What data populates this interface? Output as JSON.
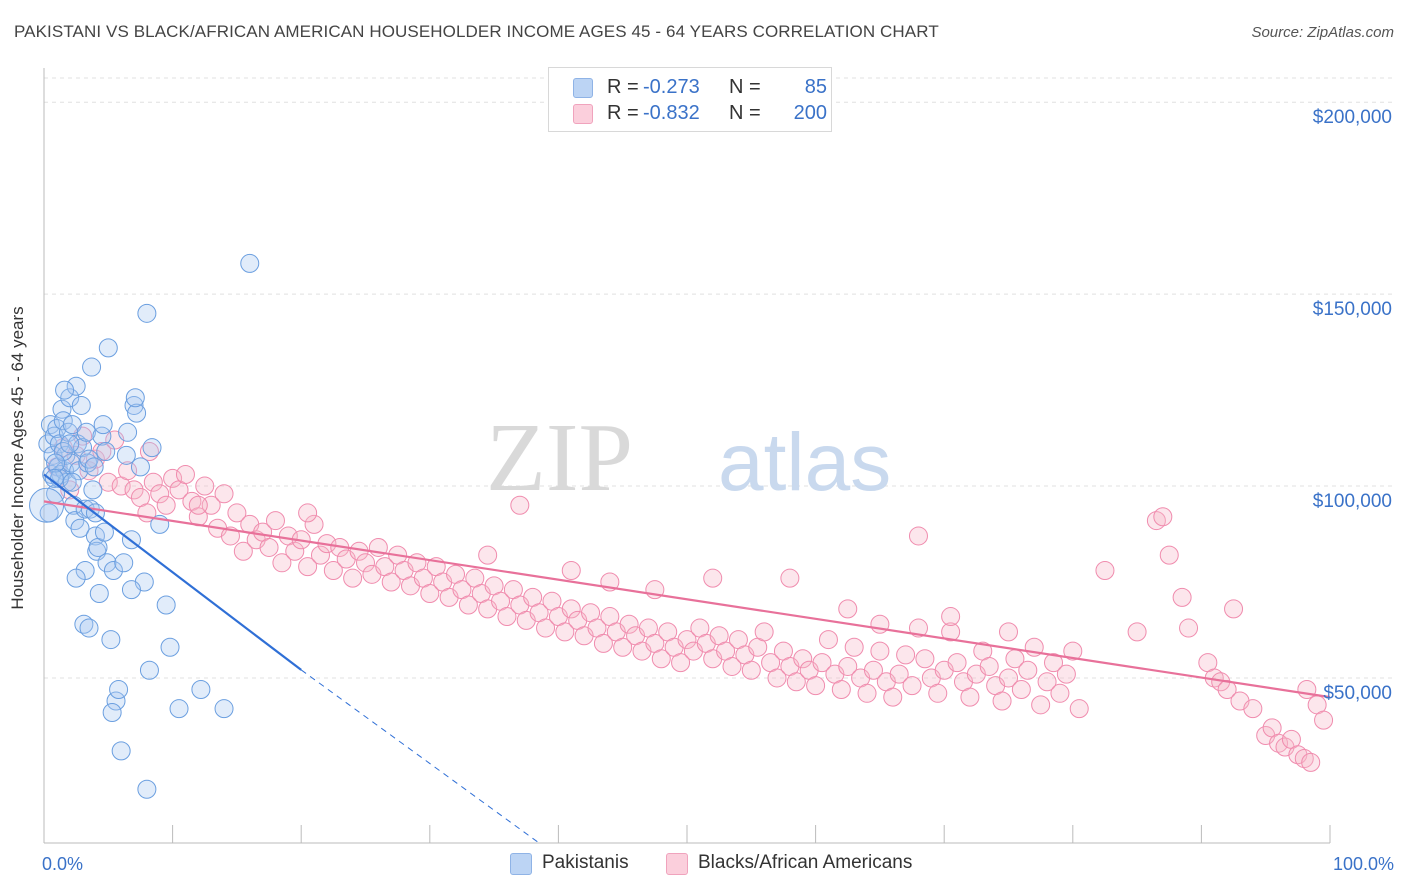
{
  "title": "PAKISTANI VS BLACK/AFRICAN AMERICAN HOUSEHOLDER INCOME AGES 45 - 64 YEARS CORRELATION CHART",
  "source": "Source: ZipAtlas.com",
  "watermark": {
    "zip": "ZIP",
    "atlas": "atlas"
  },
  "legend_top": {
    "rows": [
      {
        "r_label": "R =",
        "r_value": "-0.273",
        "n_label": "N =",
        "n_value": "85",
        "color": "#a9c8f0"
      },
      {
        "r_label": "R =",
        "r_value": "-0.832",
        "n_label": "N =",
        "n_value": "200",
        "color": "#f7b6c9"
      }
    ]
  },
  "legend_bottom": [
    {
      "label": "Pakistanis",
      "color": "#a9c8f0"
    },
    {
      "label": "Blacks/African Americans",
      "color": "#f7b6c9"
    }
  ],
  "colors": {
    "blue": "#6b9fe0",
    "blue_line": "#2f6fd6",
    "pink": "#f08cae",
    "pink_line": "#e8719a",
    "axis_text": "#3a72c8",
    "grid": "#dddddd"
  },
  "chart_data": {
    "type": "scatter",
    "title": "PAKISTANI VS BLACK/AFRICAN AMERICAN HOUSEHOLDER INCOME AGES 45 - 64 YEARS CORRELATION CHART",
    "ylabel": "Householder Income Ages 45 - 64 years",
    "xlabel": "",
    "xlim": [
      0,
      100
    ],
    "ylim": [
      7000,
      211000
    ],
    "x_tick_labels": [
      "0.0%",
      "100.0%"
    ],
    "y_ticks": [
      50000,
      100000,
      150000,
      200000
    ],
    "y_tick_labels": [
      "$50,000",
      "$100,000",
      "$150,000",
      "$200,000"
    ],
    "grid": "horizontal dashed",
    "series": [
      {
        "name": "Pakistanis",
        "color": "#6b9fe0",
        "trend": {
          "x0": 0,
          "y0": 103000,
          "x_solid_end": 20,
          "x_dash_end": 38.5,
          "y_dash_end": 5000
        },
        "points": [
          [
            0.3,
            111000
          ],
          [
            0.5,
            116000
          ],
          [
            0.6,
            103000
          ],
          [
            0.7,
            108000
          ],
          [
            0.8,
            113000
          ],
          [
            0.9,
            98000
          ],
          [
            1.0,
            115000
          ],
          [
            1.1,
            105000
          ],
          [
            1.2,
            111000
          ],
          [
            1.3,
            103000
          ],
          [
            1.4,
            120000
          ],
          [
            1.5,
            117000
          ],
          [
            1.6,
            104000
          ],
          [
            1.7,
            108000
          ],
          [
            1.8,
            101000
          ],
          [
            1.9,
            114000
          ],
          [
            2.0,
            123000
          ],
          [
            2.1,
            106000
          ],
          [
            2.2,
            116000
          ],
          [
            2.3,
            95000
          ],
          [
            2.4,
            91000
          ],
          [
            2.5,
            126000
          ],
          [
            2.6,
            111000
          ],
          [
            2.7,
            104000
          ],
          [
            2.8,
            89000
          ],
          [
            2.9,
            121000
          ],
          [
            3.0,
            110000
          ],
          [
            3.1,
            64000
          ],
          [
            3.2,
            94000
          ],
          [
            3.3,
            114000
          ],
          [
            3.4,
            106000
          ],
          [
            3.5,
            107000
          ],
          [
            3.6,
            94000
          ],
          [
            3.7,
            131000
          ],
          [
            3.8,
            99000
          ],
          [
            3.9,
            105000
          ],
          [
            4.0,
            87000
          ],
          [
            4.1,
            83000
          ],
          [
            4.2,
            84000
          ],
          [
            4.3,
            72000
          ],
          [
            4.5,
            113000
          ],
          [
            4.6,
            116000
          ],
          [
            4.7,
            88000
          ],
          [
            4.8,
            109000
          ],
          [
            4.9,
            80000
          ],
          [
            5.0,
            136000
          ],
          [
            5.2,
            60000
          ],
          [
            5.4,
            78000
          ],
          [
            5.6,
            44000
          ],
          [
            5.8,
            47000
          ],
          [
            6.0,
            31000
          ],
          [
            6.2,
            80000
          ],
          [
            6.5,
            114000
          ],
          [
            6.8,
            86000
          ],
          [
            7.0,
            121000
          ],
          [
            7.2,
            119000
          ],
          [
            7.5,
            105000
          ],
          [
            7.8,
            75000
          ],
          [
            8.0,
            21000
          ],
          [
            8.2,
            52000
          ],
          [
            6.4,
            108000
          ],
          [
            9.5,
            69000
          ],
          [
            8.4,
            110000
          ],
          [
            5.3,
            41000
          ],
          [
            7.1,
            123000
          ],
          [
            9.8,
            58000
          ],
          [
            10.5,
            42000
          ],
          [
            12.2,
            47000
          ],
          [
            14.0,
            42000
          ],
          [
            16.0,
            158000
          ],
          [
            8.0,
            145000
          ],
          [
            9.0,
            90000
          ],
          [
            3.2,
            78000
          ],
          [
            2.5,
            76000
          ],
          [
            1.5,
            109000
          ],
          [
            1.2,
            102000
          ],
          [
            0.9,
            106000
          ],
          [
            0.4,
            93000
          ],
          [
            0.8,
            102000
          ],
          [
            2.0,
            111000
          ],
          [
            4.0,
            93000
          ],
          [
            3.5,
            63000
          ],
          [
            6.8,
            73000
          ],
          [
            1.6,
            125000
          ],
          [
            2.2,
            101000
          ]
        ]
      },
      {
        "name": "Blacks/African Americans",
        "color": "#f08cae",
        "trend": {
          "x0": 0,
          "y0": 96000,
          "x1": 100,
          "y1": 45000
        },
        "points": [
          [
            1.0,
            105000
          ],
          [
            1.5,
            110000
          ],
          [
            2.0,
            99000
          ],
          [
            2.5,
            108000
          ],
          [
            3.0,
            113000
          ],
          [
            3.5,
            104000
          ],
          [
            4.0,
            107000
          ],
          [
            4.5,
            109000
          ],
          [
            5.0,
            101000
          ],
          [
            5.5,
            112000
          ],
          [
            6.0,
            100000
          ],
          [
            6.5,
            104000
          ],
          [
            7.0,
            99000
          ],
          [
            7.5,
            97000
          ],
          [
            8.0,
            93000
          ],
          [
            8.5,
            101000
          ],
          [
            9.0,
            98000
          ],
          [
            9.5,
            95000
          ],
          [
            10.0,
            102000
          ],
          [
            10.5,
            99000
          ],
          [
            11.0,
            103000
          ],
          [
            11.5,
            96000
          ],
          [
            12.0,
            92000
          ],
          [
            12.5,
            100000
          ],
          [
            13.0,
            95000
          ],
          [
            13.5,
            89000
          ],
          [
            14.0,
            98000
          ],
          [
            14.5,
            87000
          ],
          [
            15.0,
            93000
          ],
          [
            15.5,
            83000
          ],
          [
            16.0,
            90000
          ],
          [
            16.5,
            86000
          ],
          [
            17.0,
            88000
          ],
          [
            17.5,
            84000
          ],
          [
            18.0,
            91000
          ],
          [
            18.5,
            80000
          ],
          [
            19.0,
            87000
          ],
          [
            19.5,
            83000
          ],
          [
            20.0,
            86000
          ],
          [
            20.5,
            79000
          ],
          [
            21.0,
            90000
          ],
          [
            21.5,
            82000
          ],
          [
            22.0,
            85000
          ],
          [
            22.5,
            78000
          ],
          [
            23.0,
            84000
          ],
          [
            23.5,
            81000
          ],
          [
            24.0,
            76000
          ],
          [
            24.5,
            83000
          ],
          [
            25.0,
            80000
          ],
          [
            25.5,
            77000
          ],
          [
            26.0,
            84000
          ],
          [
            26.5,
            79000
          ],
          [
            27.0,
            75000
          ],
          [
            27.5,
            82000
          ],
          [
            28.0,
            78000
          ],
          [
            28.5,
            74000
          ],
          [
            29.0,
            80000
          ],
          [
            29.5,
            76000
          ],
          [
            30.0,
            72000
          ],
          [
            30.5,
            79000
          ],
          [
            31.0,
            75000
          ],
          [
            31.5,
            71000
          ],
          [
            32.0,
            77000
          ],
          [
            32.5,
            73000
          ],
          [
            33.0,
            69000
          ],
          [
            33.5,
            76000
          ],
          [
            34.0,
            72000
          ],
          [
            34.5,
            68000
          ],
          [
            35.0,
            74000
          ],
          [
            35.5,
            70000
          ],
          [
            36.0,
            66000
          ],
          [
            36.5,
            73000
          ],
          [
            37.0,
            69000
          ],
          [
            37.5,
            65000
          ],
          [
            38.0,
            71000
          ],
          [
            38.5,
            67000
          ],
          [
            39.0,
            63000
          ],
          [
            39.5,
            70000
          ],
          [
            40.0,
            66000
          ],
          [
            40.5,
            62000
          ],
          [
            41.0,
            68000
          ],
          [
            41.5,
            65000
          ],
          [
            42.0,
            61000
          ],
          [
            42.5,
            67000
          ],
          [
            43.0,
            63000
          ],
          [
            43.5,
            59000
          ],
          [
            44.0,
            66000
          ],
          [
            44.5,
            62000
          ],
          [
            45.0,
            58000
          ],
          [
            45.5,
            64000
          ],
          [
            46.0,
            61000
          ],
          [
            46.5,
            57000
          ],
          [
            47.0,
            63000
          ],
          [
            47.5,
            59000
          ],
          [
            48.0,
            55000
          ],
          [
            48.5,
            62000
          ],
          [
            49.0,
            58000
          ],
          [
            49.5,
            54000
          ],
          [
            50.0,
            60000
          ],
          [
            50.5,
            57000
          ],
          [
            51.0,
            63000
          ],
          [
            51.5,
            59000
          ],
          [
            52.0,
            55000
          ],
          [
            52.5,
            61000
          ],
          [
            53.0,
            57000
          ],
          [
            53.5,
            53000
          ],
          [
            54.0,
            60000
          ],
          [
            54.5,
            56000
          ],
          [
            55.0,
            52000
          ],
          [
            55.5,
            58000
          ],
          [
            56.0,
            62000
          ],
          [
            56.5,
            54000
          ],
          [
            57.0,
            50000
          ],
          [
            57.5,
            57000
          ],
          [
            58.0,
            53000
          ],
          [
            58.5,
            49000
          ],
          [
            59.0,
            55000
          ],
          [
            59.5,
            52000
          ],
          [
            60.0,
            48000
          ],
          [
            60.5,
            54000
          ],
          [
            61.0,
            60000
          ],
          [
            61.5,
            51000
          ],
          [
            62.0,
            47000
          ],
          [
            62.5,
            53000
          ],
          [
            63.0,
            58000
          ],
          [
            63.5,
            50000
          ],
          [
            64.0,
            46000
          ],
          [
            64.5,
            52000
          ],
          [
            65.0,
            57000
          ],
          [
            65.5,
            49000
          ],
          [
            66.0,
            45000
          ],
          [
            66.5,
            51000
          ],
          [
            67.0,
            56000
          ],
          [
            67.5,
            48000
          ],
          [
            68.0,
            63000
          ],
          [
            68.5,
            55000
          ],
          [
            69.0,
            50000
          ],
          [
            69.5,
            46000
          ],
          [
            70.0,
            52000
          ],
          [
            70.5,
            62000
          ],
          [
            71.0,
            54000
          ],
          [
            71.5,
            49000
          ],
          [
            72.0,
            45000
          ],
          [
            72.5,
            51000
          ],
          [
            73.0,
            57000
          ],
          [
            73.5,
            53000
          ],
          [
            74.0,
            48000
          ],
          [
            74.5,
            44000
          ],
          [
            75.0,
            50000
          ],
          [
            75.5,
            55000
          ],
          [
            76.0,
            47000
          ],
          [
            76.5,
            52000
          ],
          [
            77.0,
            58000
          ],
          [
            77.5,
            43000
          ],
          [
            78.0,
            49000
          ],
          [
            78.5,
            54000
          ],
          [
            79.0,
            46000
          ],
          [
            79.5,
            51000
          ],
          [
            80.0,
            57000
          ],
          [
            80.5,
            42000
          ],
          [
            8.2,
            109000
          ],
          [
            12.0,
            95000
          ],
          [
            20.5,
            93000
          ],
          [
            44.0,
            75000
          ],
          [
            58.0,
            76000
          ],
          [
            62.5,
            68000
          ],
          [
            68.0,
            87000
          ],
          [
            82.5,
            78000
          ],
          [
            86.5,
            91000
          ],
          [
            87.0,
            92000
          ],
          [
            87.5,
            82000
          ],
          [
            88.5,
            71000
          ],
          [
            89.0,
            63000
          ],
          [
            90.5,
            54000
          ],
          [
            91.0,
            50000
          ],
          [
            91.5,
            49000
          ],
          [
            92.0,
            47000
          ],
          [
            92.5,
            68000
          ],
          [
            93.0,
            44000
          ],
          [
            94.0,
            42000
          ],
          [
            95.0,
            35000
          ],
          [
            95.5,
            37000
          ],
          [
            96.0,
            33000
          ],
          [
            96.5,
            32000
          ],
          [
            97.0,
            34000
          ],
          [
            97.5,
            30000
          ],
          [
            98.0,
            29000
          ],
          [
            98.5,
            28000
          ],
          [
            99.0,
            43000
          ],
          [
            99.5,
            39000
          ],
          [
            37.0,
            95000
          ],
          [
            34.5,
            82000
          ],
          [
            52.0,
            76000
          ],
          [
            47.5,
            73000
          ],
          [
            41.0,
            78000
          ],
          [
            65.0,
            64000
          ],
          [
            70.5,
            66000
          ],
          [
            75.0,
            62000
          ],
          [
            85.0,
            62000
          ],
          [
            98.2,
            47000
          ]
        ]
      }
    ]
  }
}
